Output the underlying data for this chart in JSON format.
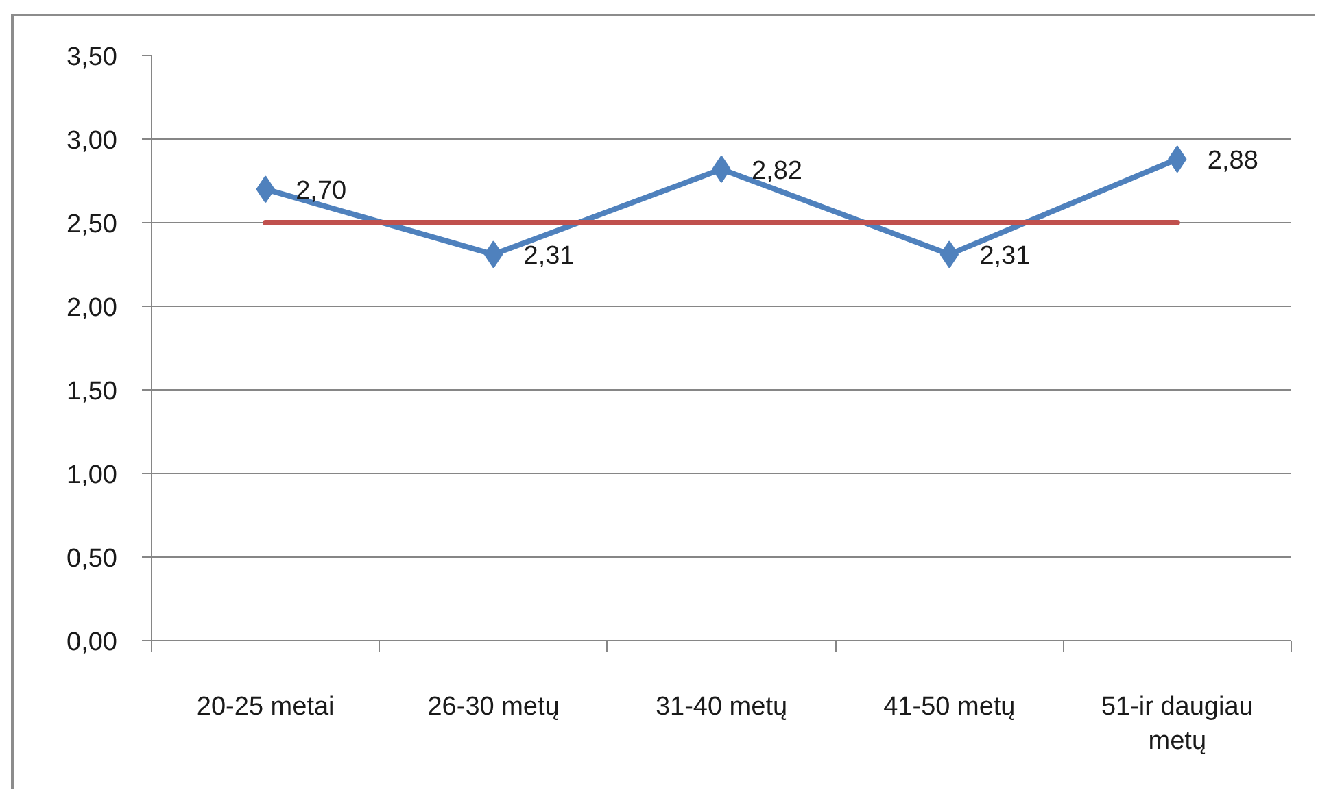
{
  "chart_data": {
    "type": "line",
    "categories": [
      "20-25 metai",
      "26-30 metų",
      "31-40 metų",
      "41-50 metų",
      "51-ir daugiau metų"
    ],
    "series": [
      {
        "color": "#4f81bd",
        "values": [
          2.7,
          2.31,
          2.82,
          2.31,
          2.88
        ],
        "value_labels": [
          "2,70",
          "2,31",
          "2,82",
          "2,31",
          "2,88"
        ]
      },
      {
        "color": "#c0504d",
        "values": [
          2.5,
          2.5,
          2.5,
          2.5,
          2.5
        ],
        "marker": "none"
      }
    ],
    "marker": "diamond",
    "ylim": [
      0,
      3.5
    ],
    "yticks": [
      {
        "value": 0,
        "label": "0,00"
      },
      {
        "value": 0.5,
        "label": "0,50"
      },
      {
        "value": 1,
        "label": "1,00"
      },
      {
        "value": 1.5,
        "label": "1,50"
      },
      {
        "value": 2,
        "label": "2,00"
      },
      {
        "value": 2.5,
        "label": "2,50"
      },
      {
        "value": 3,
        "label": "3,00"
      },
      {
        "value": 3.5,
        "label": "3,50"
      }
    ],
    "grid": "y"
  }
}
